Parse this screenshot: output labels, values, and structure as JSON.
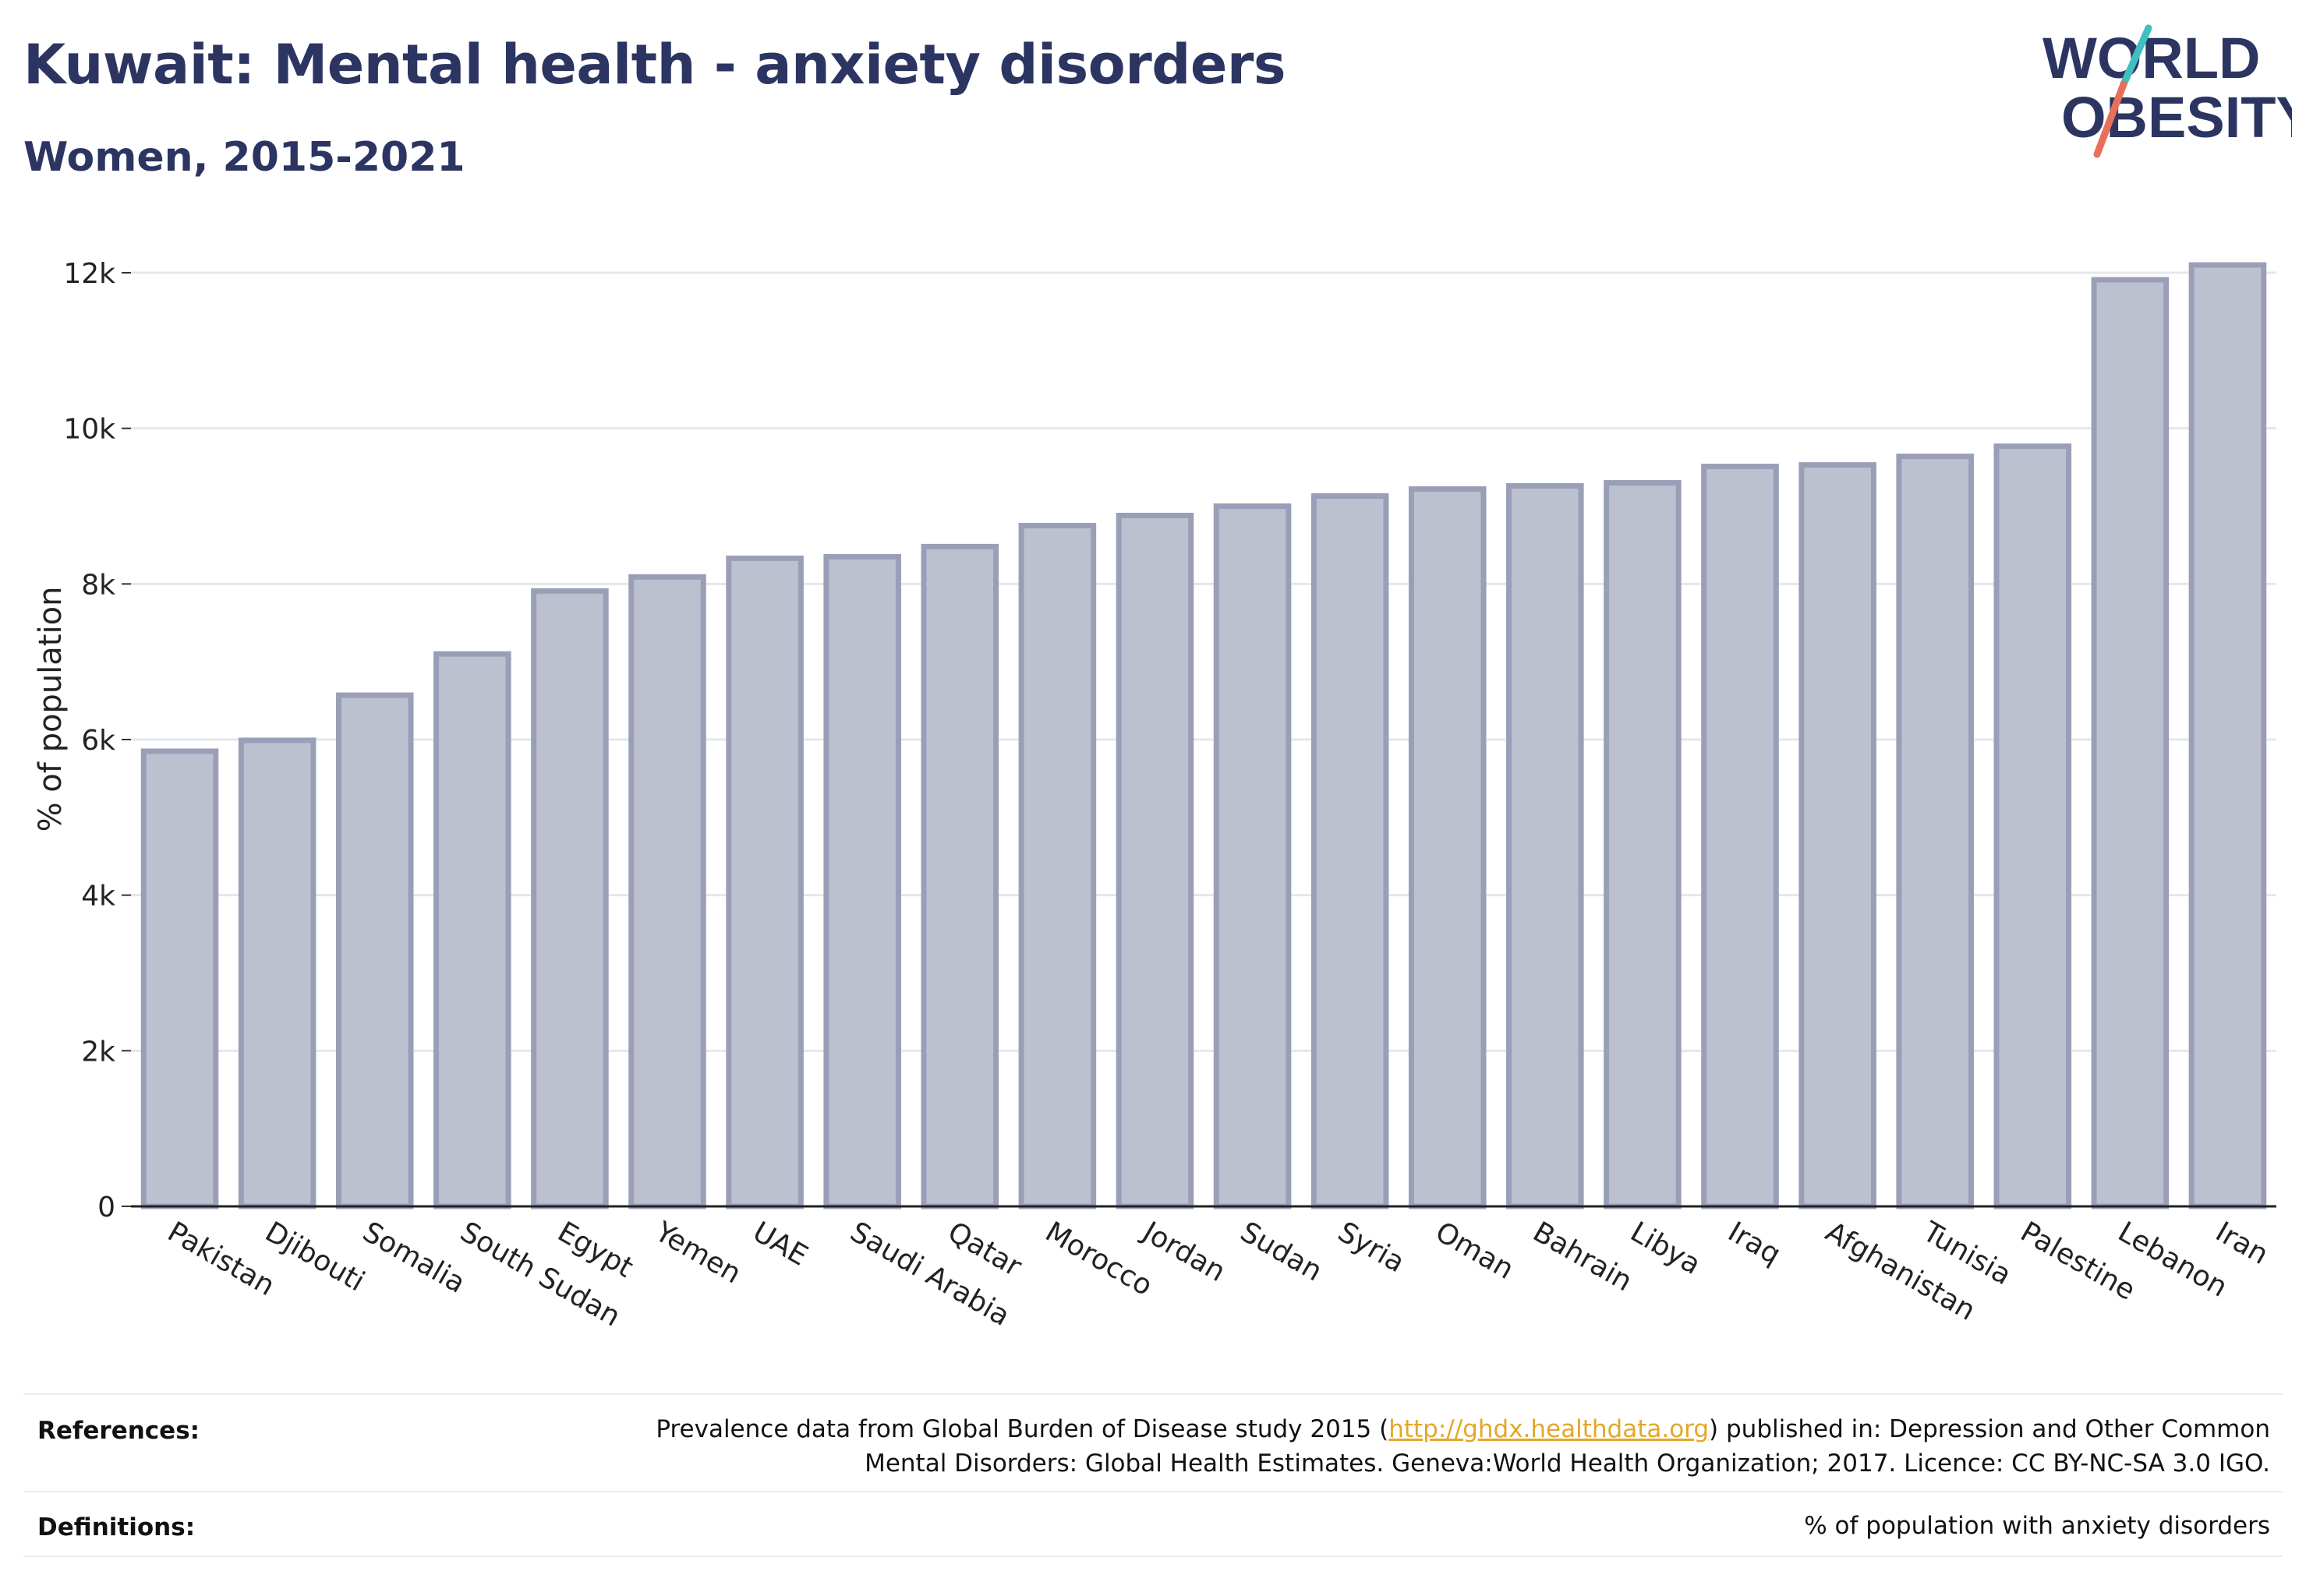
{
  "header": {
    "title": "Kuwait: Mental health - anxiety disorders",
    "subtitle": "Women, 2015-2021"
  },
  "logo": {
    "line1": "WORLD",
    "line2": "OBESITY",
    "slash_color_top": "#3fbfbf",
    "slash_color_bottom": "#e8705a"
  },
  "chart_data": {
    "type": "bar",
    "ylabel": "% of population",
    "ylim": [
      0,
      12000
    ],
    "yticks": [
      0,
      2000,
      4000,
      6000,
      8000,
      10000,
      12000
    ],
    "ytick_labels": [
      "0",
      "2k",
      "4k",
      "6k",
      "8k",
      "10k",
      "12k"
    ],
    "grid": true,
    "bar_fill": "#bcc0cf",
    "bar_stroke": "#9a9fb8",
    "categories": [
      "Pakistan",
      "Djibouti",
      "Somalia",
      "South Sudan",
      "Egypt",
      "Yemen",
      "UAE",
      "Saudi Arabia",
      "Qatar",
      "Morocco",
      "Jordan",
      "Sudan",
      "Syria",
      "Oman",
      "Bahrain",
      "Libya",
      "Iraq",
      "Afghanistan",
      "Tunisia",
      "Palestine",
      "Lebanon",
      "Iran"
    ],
    "values": [
      5850,
      5990,
      6570,
      7100,
      7910,
      8090,
      8330,
      8350,
      8480,
      8750,
      8880,
      9000,
      9130,
      9220,
      9260,
      9300,
      9510,
      9530,
      9640,
      9770,
      11910,
      12100
    ]
  },
  "footer": {
    "references_label": "References:",
    "references_prefix": "Prevalence data from Global Burden of Disease study 2015 (",
    "references_link": "http://ghdx.healthdata.org",
    "references_suffix": ") published in: Depression and Other Common",
    "references_line2": "Mental Disorders: Global Health Estimates. Geneva:World Health Organization; 2017. Licence: CC BY-NC-SA 3.0 IGO.",
    "definitions_label": "Definitions:",
    "definitions_text": "% of population with anxiety disorders"
  }
}
